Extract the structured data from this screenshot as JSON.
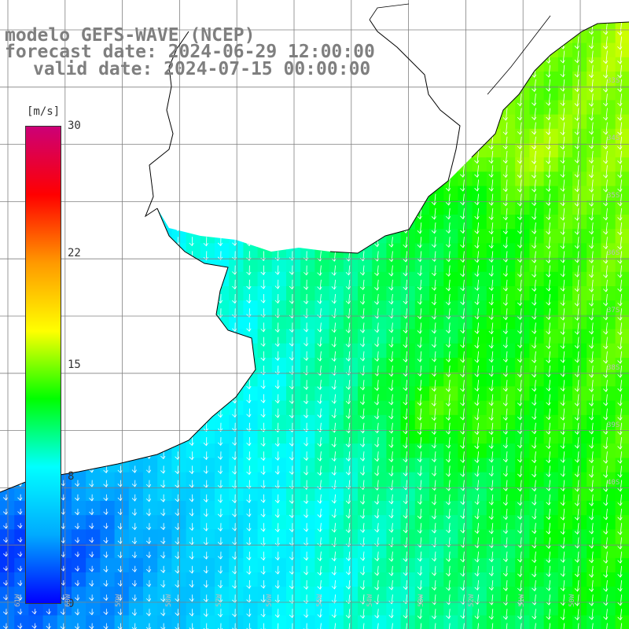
{
  "title": {
    "model": "modelo GEFS-WAVE (NCEP)",
    "forecast": "forecast date: 2024-06-29 12:00:00",
    "valid": "valid date: 2024-07-15 00:00:00"
  },
  "colorbar": {
    "units": "[m/s]",
    "ticks": [
      "30",
      "22",
      "15",
      "8",
      "0"
    ],
    "tick_values": [
      30,
      22,
      15,
      8,
      0
    ],
    "min": 0,
    "max": 30,
    "colors": [
      "#0000ff",
      "#00aaff",
      "#00ffff",
      "#00ff00",
      "#ffff00",
      "#ff9900",
      "#ff0000",
      "#cc0077"
    ]
  },
  "map": {
    "variable": "wind speed and direction",
    "land_color": "#ffffff",
    "grid_color": "#808080",
    "coast_color": "#000000",
    "arrow_color": "#ffffff",
    "lon_labels": [
      "61W",
      "60W",
      "59W",
      "58W",
      "57W",
      "56W",
      "55W",
      "54W",
      "53W",
      "52W",
      "51W",
      "50W"
    ],
    "lat_labels": [
      "33S",
      "34S",
      "35S",
      "36S",
      "37S",
      "38S",
      "39S",
      "40S"
    ]
  }
}
